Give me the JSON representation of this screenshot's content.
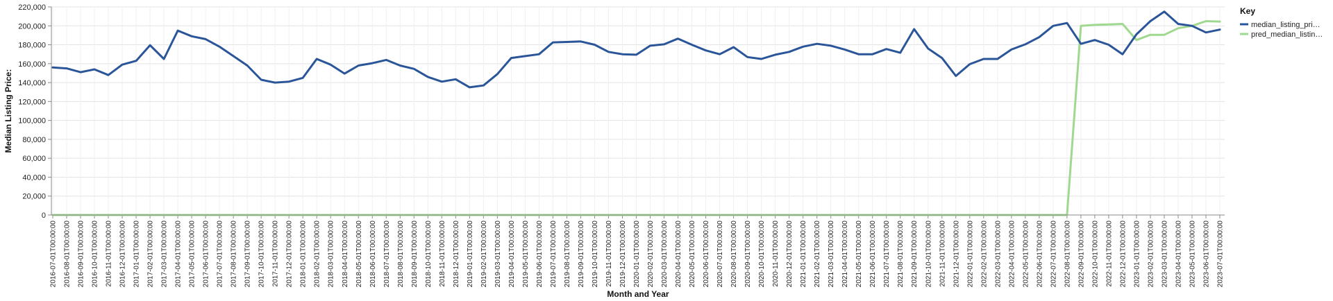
{
  "chart_data": {
    "type": "line",
    "xlabel": "Month and Year",
    "ylabel": "Median Listing Price:",
    "ylim": [
      0,
      220000
    ],
    "yticks": [
      0,
      20000,
      40000,
      60000,
      80000,
      100000,
      120000,
      140000,
      160000,
      180000,
      200000,
      220000
    ],
    "grid": true,
    "legend": {
      "title": "Key",
      "placement": "top-right"
    },
    "x": [
      "2016-07-01T00:00:00",
      "2016-08-01T00:00:00",
      "2016-09-01T00:00:00",
      "2016-10-01T00:00:00",
      "2016-11-01T00:00:00",
      "2016-12-01T00:00:00",
      "2017-01-01T00:00:00",
      "2017-02-01T00:00:00",
      "2017-03-01T00:00:00",
      "2017-04-01T00:00:00",
      "2017-05-01T00:00:00",
      "2017-06-01T00:00:00",
      "2017-07-01T00:00:00",
      "2017-08-01T00:00:00",
      "2017-09-01T00:00:00",
      "2017-10-01T00:00:00",
      "2017-11-01T00:00:00",
      "2017-12-01T00:00:00",
      "2018-01-01T00:00:00",
      "2018-02-01T00:00:00",
      "2018-03-01T00:00:00",
      "2018-04-01T00:00:00",
      "2018-05-01T00:00:00",
      "2018-06-01T00:00:00",
      "2018-07-01T00:00:00",
      "2018-08-01T00:00:00",
      "2018-09-01T00:00:00",
      "2018-10-01T00:00:00",
      "2018-11-01T00:00:00",
      "2018-12-01T00:00:00",
      "2019-01-01T00:00:00",
      "2019-02-01T00:00:00",
      "2019-03-01T00:00:00",
      "2019-04-01T00:00:00",
      "2019-05-01T00:00:00",
      "2019-06-01T00:00:00",
      "2019-07-01T00:00:00",
      "2019-08-01T00:00:00",
      "2019-09-01T00:00:00",
      "2019-10-01T00:00:00",
      "2019-11-01T00:00:00",
      "2019-12-01T00:00:00",
      "2020-01-01T00:00:00",
      "2020-02-01T00:00:00",
      "2020-03-01T00:00:00",
      "2020-04-01T00:00:00",
      "2020-05-01T00:00:00",
      "2020-06-01T00:00:00",
      "2020-07-01T00:00:00",
      "2020-08-01T00:00:00",
      "2020-09-01T00:00:00",
      "2020-10-01T00:00:00",
      "2020-11-01T00:00:00",
      "2020-12-01T00:00:00",
      "2021-01-01T00:00:00",
      "2021-02-01T00:00:00",
      "2021-03-01T00:00:00",
      "2021-04-01T00:00:00",
      "2021-05-01T00:00:00",
      "2021-06-01T00:00:00",
      "2021-07-01T00:00:00",
      "2021-08-01T00:00:00",
      "2021-09-01T00:00:00",
      "2021-10-01T00:00:00",
      "2021-11-01T00:00:00",
      "2021-12-01T00:00:00",
      "2022-01-01T00:00:00",
      "2022-02-01T00:00:00",
      "2022-03-01T00:00:00",
      "2022-04-01T00:00:00",
      "2022-05-01T00:00:00",
      "2022-06-01T00:00:00",
      "2022-07-01T00:00:00",
      "2022-08-01T00:00:00",
      "2022-09-01T00:00:00",
      "2022-10-01T00:00:00",
      "2022-11-01T00:00:00",
      "2022-12-01T00:00:00",
      "2023-01-01T00:00:00",
      "2023-02-01T00:00:00",
      "2023-03-01T00:00:00",
      "2023-04-01T00:00:00",
      "2023-05-01T00:00:00",
      "2023-06-01T00:00:00",
      "2023-07-01T00:00:00"
    ],
    "series": [
      {
        "name": "median_listing_pri…",
        "color": "#2a5599",
        "values": [
          156000,
          155000,
          151000,
          154000,
          148000,
          159000,
          163000,
          179500,
          165000,
          195000,
          189000,
          186000,
          178000,
          168000,
          158000,
          143000,
          140000,
          141000,
          145000,
          165000,
          159000,
          149500,
          158000,
          160500,
          164000,
          158000,
          154500,
          146000,
          141000,
          143500,
          135000,
          137000,
          149000,
          166000,
          168000,
          170000,
          182500,
          183000,
          183500,
          180000,
          172500,
          170000,
          169500,
          179000,
          180500,
          186500,
          180000,
          174000,
          170000,
          177500,
          167000,
          165000,
          169500,
          172500,
          178000,
          181000,
          179000,
          175000,
          170000,
          170000,
          175500,
          171500,
          196500,
          176000,
          166000,
          147000,
          159500,
          165000,
          165000,
          175000,
          180500,
          188000,
          200000,
          203000,
          181000,
          185000,
          180000,
          170000,
          191000,
          205000,
          215000,
          202000,
          200000,
          193000,
          196000
        ]
      },
      {
        "name": "pred_median_listin…",
        "color": "#9fd98f",
        "values": [
          0,
          0,
          0,
          0,
          0,
          0,
          0,
          0,
          0,
          0,
          0,
          0,
          0,
          0,
          0,
          0,
          0,
          0,
          0,
          0,
          0,
          0,
          0,
          0,
          0,
          0,
          0,
          0,
          0,
          0,
          0,
          0,
          0,
          0,
          0,
          0,
          0,
          0,
          0,
          0,
          0,
          0,
          0,
          0,
          0,
          0,
          0,
          0,
          0,
          0,
          0,
          0,
          0,
          0,
          0,
          0,
          0,
          0,
          0,
          0,
          0,
          0,
          0,
          0,
          0,
          0,
          0,
          0,
          0,
          0,
          0,
          0,
          0,
          0,
          200000,
          201000,
          201500,
          202000,
          185000,
          190500,
          190500,
          197500,
          200000,
          205000,
          204500
        ]
      }
    ]
  }
}
